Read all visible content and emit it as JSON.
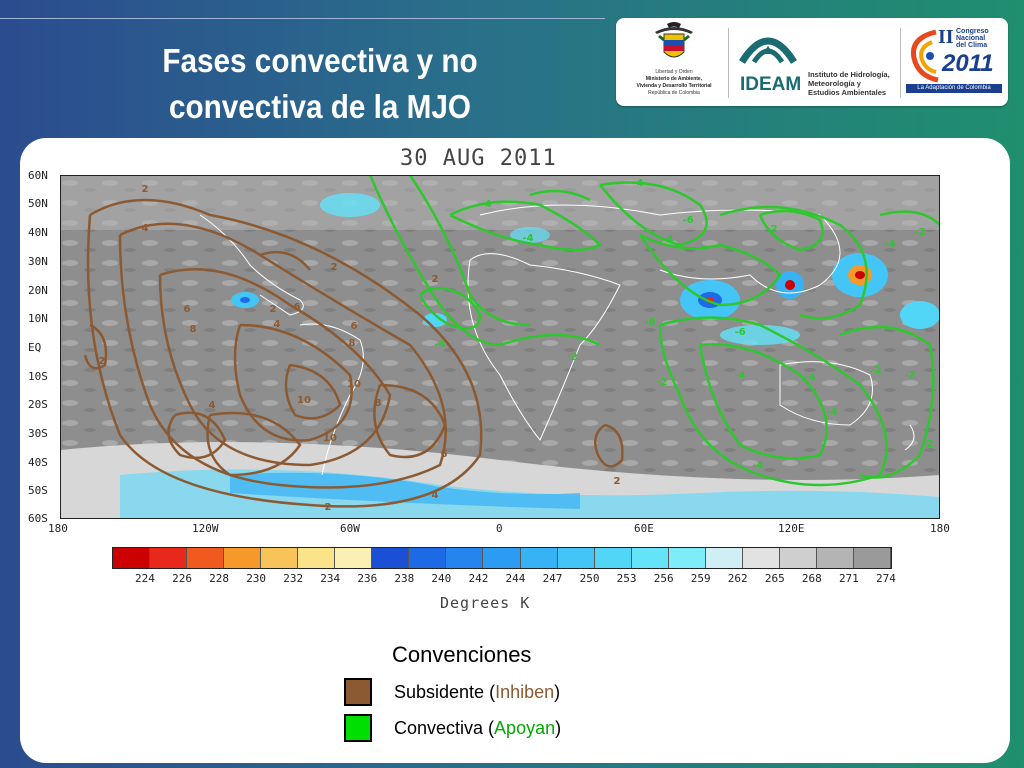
{
  "slide": {
    "title_line1": "Fases convectiva y no",
    "title_line2": "convectiva de la MJO"
  },
  "logos": {
    "ministry": {
      "line1": "Libertad y Orden",
      "line2": "Ministerio de Ambiente,",
      "line3": "Vivienda y Desarrollo Territorial",
      "line4": "República de Colombia"
    },
    "ideam": {
      "name": "IDEAM",
      "desc1": "Instituto de Hidrología,",
      "desc2": "Meteorología y",
      "desc3": "Estudios Ambientales"
    },
    "congreso": {
      "roman": "II",
      "line1": "Congreso",
      "line2": "Nacional",
      "line3": "del Clima",
      "year": "2011",
      "tagline": "La Adaptación de Colombia"
    }
  },
  "map": {
    "date": "30 AUG 2011",
    "lat_labels": [
      "60N",
      "50N",
      "40N",
      "30N",
      "20N",
      "10N",
      "EQ",
      "10S",
      "20S",
      "30S",
      "40S",
      "50S",
      "60S"
    ],
    "lon_labels": [
      "180",
      "120W",
      "60W",
      "0",
      "60E",
      "120E",
      "180"
    ],
    "colorbar_labels": [
      "224",
      "226",
      "228",
      "230",
      "232",
      "234",
      "236",
      "238",
      "240",
      "242",
      "244",
      "247",
      "250",
      "253",
      "256",
      "259",
      "262",
      "265",
      "268",
      "271",
      "274"
    ],
    "colorbar_colors": [
      "#cc0000",
      "#e8281b",
      "#f05a1e",
      "#f59a2a",
      "#f8c45a",
      "#fbe38a",
      "#fbf0b4",
      "#1a4fd6",
      "#1e6ae6",
      "#2584ee",
      "#2c9cf2",
      "#36b2f5",
      "#43c6f7",
      "#52d6f8",
      "#64e3f9",
      "#7eecf9",
      "#cfeff4",
      "#e2e2e2",
      "#cfcfcf",
      "#b4b4b4",
      "#9a9a9a"
    ],
    "units": "Degrees K",
    "subsident_labels": [
      "2",
      "4",
      "6",
      "8",
      "2",
      "4",
      "6",
      "2",
      "2",
      "4",
      "6",
      "8",
      "10",
      "10",
      "10",
      "8",
      "6",
      "4",
      "2",
      "2",
      "2"
    ],
    "convective_labels": [
      "-4",
      "-4",
      "-4",
      "-4",
      "-6",
      "-2",
      "-4",
      "-2",
      "-6",
      "-2",
      "-6",
      "-2",
      "-4",
      "-4",
      "-2",
      "-2",
      "-4",
      "-4",
      "-4",
      "-2"
    ]
  },
  "legend": {
    "title": "Convenciones",
    "items": [
      {
        "prefix": "Subsidente (",
        "highlight": "Inhiben",
        "suffix": ")",
        "color": "#8c5a32",
        "hl_color": "#8c5a32"
      },
      {
        "prefix": "Convectiva (",
        "highlight": "Apoyan",
        "suffix": ")",
        "color": "#00e000",
        "hl_color": "#00aa00"
      }
    ]
  }
}
